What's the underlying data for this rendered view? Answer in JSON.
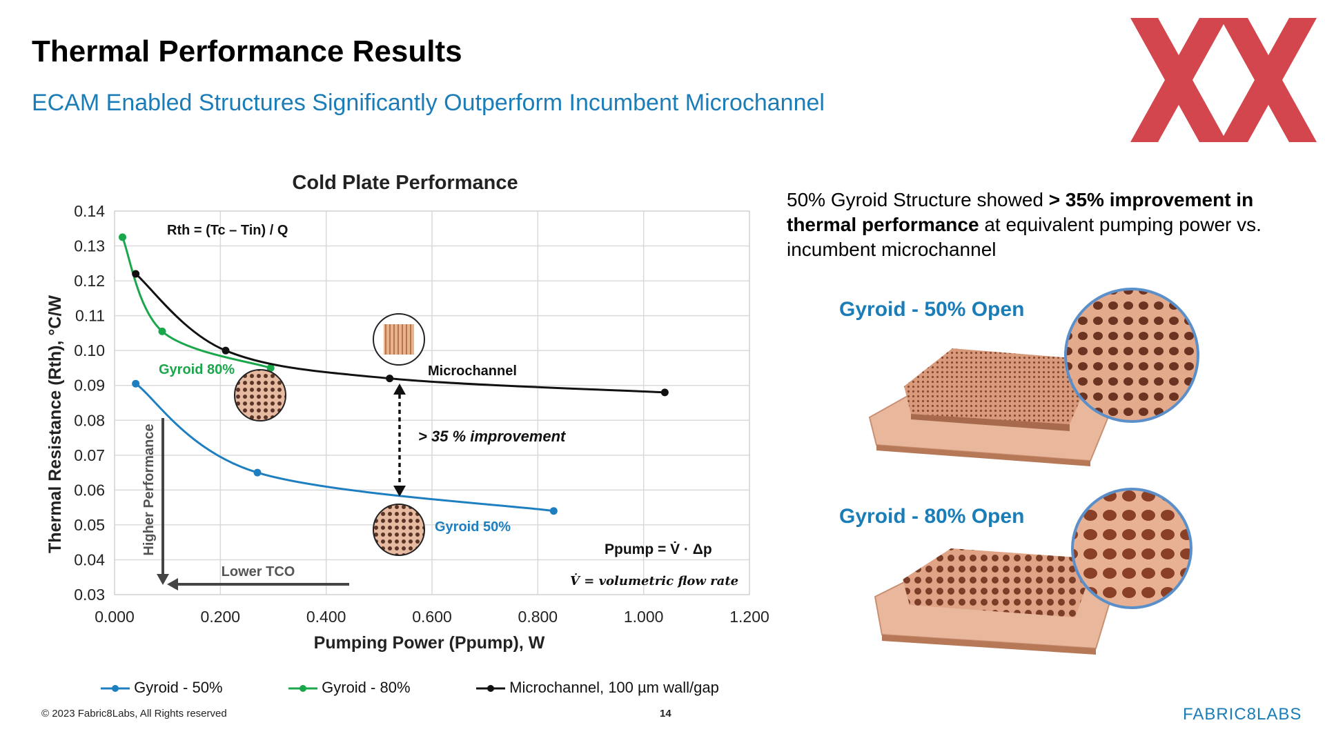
{
  "slide": {
    "title": "Thermal Performance Results",
    "subtitle": "ECAM Enabled Structures Significantly Outperform Incumbent Microchannel",
    "footer": "© 2023 Fabric8Labs, All Rights reserved",
    "page_number": "14",
    "brand": "FABRIC8LABS"
  },
  "info": {
    "part1": "50% Gyroid Structure showed ",
    "bold": "> 35% improvement in thermal performance",
    "part2": " at equivalent pumping power vs. incumbent microchannel"
  },
  "images": [
    {
      "label": "Gyroid - 50% Open"
    },
    {
      "label": "Gyroid - 80% Open"
    }
  ],
  "colors": {
    "accent": "#1a7db8",
    "logo": "#d0333b",
    "gyroid50": "#1e7fc0",
    "gyroid80": "#1aa64a",
    "microchannel": "#111111",
    "copper": "#d9997a"
  },
  "chart_data": {
    "type": "line",
    "title": "Cold Plate Performance",
    "xlabel": "Pumping Power (Ppump), W",
    "ylabel": "Thermal Resistance (Rth), °C/W",
    "xlim": [
      0,
      1.2
    ],
    "ylim": [
      0.03,
      0.14
    ],
    "x_ticks": [
      "0.000",
      "0.200",
      "0.400",
      "0.600",
      "0.800",
      "1.000",
      "1.200"
    ],
    "y_ticks": [
      "0.03",
      "0.04",
      "0.05",
      "0.06",
      "0.07",
      "0.08",
      "0.09",
      "0.10",
      "0.11",
      "0.12",
      "0.13",
      "0.14"
    ],
    "grid": true,
    "legend_position": "bottom",
    "series": [
      {
        "name": "Gyroid - 50%",
        "x": [
          0.04,
          0.27,
          0.83
        ],
        "y": [
          0.0905,
          0.065,
          0.054
        ]
      },
      {
        "name": "Gyroid - 80%",
        "x": [
          0.015,
          0.09,
          0.295
        ],
        "y": [
          0.1325,
          0.1055,
          0.095
        ]
      },
      {
        "name": "Microchannel, 100 µm wall/gap",
        "x": [
          0.04,
          0.21,
          0.52,
          1.04
        ],
        "y": [
          0.122,
          0.1,
          0.092,
          0.088
        ]
      }
    ],
    "annotations": {
      "formula_rth": "Rth = (Tc – Tin) / Q",
      "label_gyroid80": "Gyroid 80%",
      "label_microchannel": "Microchannel",
      "label_gyroid50": "Gyroid 50%",
      "improvement": "> 35 % improvement",
      "higher_performance": "Higher Performance",
      "lower_tco": "Lower TCO",
      "formula_ppump": "Ppump = V̇ · Δp",
      "flow_rate": "V̇ = volumetric flow rate"
    }
  }
}
